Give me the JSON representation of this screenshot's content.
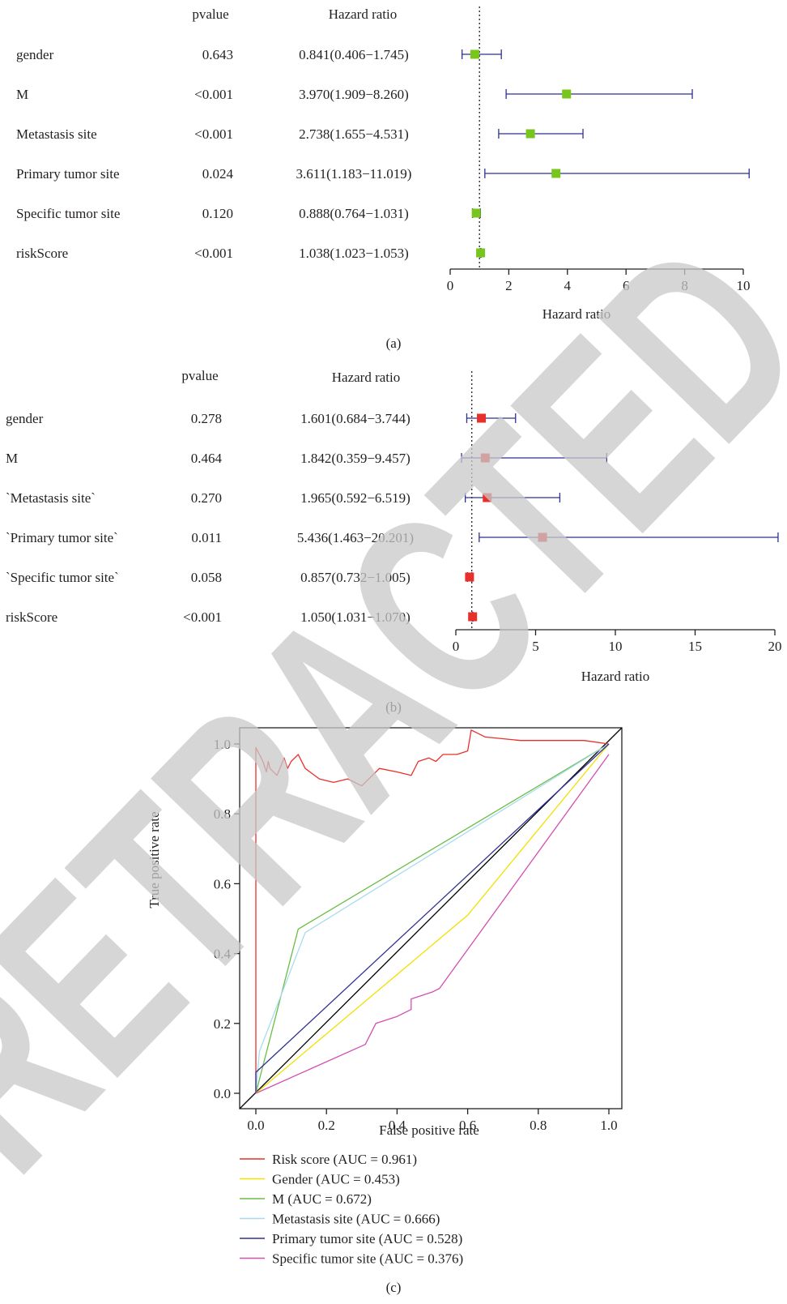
{
  "chart_data": [
    {
      "type": "forest",
      "panel_label": "(a)",
      "header": {
        "pvalue": "pvalue",
        "hr": "Hazard ratio"
      },
      "xlabel": "Hazard ratio",
      "xlim": [
        0,
        10
      ],
      "xticks": [
        0,
        2,
        4,
        6,
        8,
        10
      ],
      "ref_line": 1,
      "colors": {
        "box": "#78c51c",
        "ci": "#2e3192"
      },
      "rows": [
        {
          "label": "gender",
          "pvalue": "0.643",
          "hr_text": "0.841(0.406−1.745)",
          "hr": 0.841,
          "lo": 0.406,
          "hi": 1.745
        },
        {
          "label": "M",
          "pvalue": "<0.001",
          "hr_text": "3.970(1.909−8.260)",
          "hr": 3.97,
          "lo": 1.909,
          "hi": 8.26
        },
        {
          "label": "Metastasis site",
          "pvalue": "<0.001",
          "hr_text": "2.738(1.655−4.531)",
          "hr": 2.738,
          "lo": 1.655,
          "hi": 4.531
        },
        {
          "label": "Primary tumor site",
          "pvalue": "0.024",
          "hr_text": "3.611(1.183−11.019)",
          "hr": 3.611,
          "lo": 1.183,
          "hi": 11.019
        },
        {
          "label": "Specific tumor site",
          "pvalue": "0.120",
          "hr_text": "0.888(0.764−1.031)",
          "hr": 0.888,
          "lo": 0.764,
          "hi": 1.031
        },
        {
          "label": "riskScore",
          "pvalue": "<0.001",
          "hr_text": "1.038(1.023−1.053)",
          "hr": 1.038,
          "lo": 1.023,
          "hi": 1.053
        }
      ]
    },
    {
      "type": "forest",
      "panel_label": "(b)",
      "header": {
        "pvalue": "pvalue",
        "hr": "Hazard ratio"
      },
      "xlabel": "Hazard ratio",
      "xlim": [
        0,
        20
      ],
      "xticks": [
        0,
        5,
        10,
        15,
        20
      ],
      "ref_line": 1,
      "colors": {
        "box": "#e8302a",
        "ci": "#2e3192"
      },
      "rows": [
        {
          "label": "gender",
          "pvalue": "0.278",
          "hr_text": "1.601(0.684−3.744)",
          "hr": 1.601,
          "lo": 0.684,
          "hi": 3.744
        },
        {
          "label": "M",
          "pvalue": "0.464",
          "hr_text": "1.842(0.359−9.457)",
          "hr": 1.842,
          "lo": 0.359,
          "hi": 9.457
        },
        {
          "label": "`Metastasis site`",
          "pvalue": "0.270",
          "hr_text": "1.965(0.592−6.519)",
          "hr": 1.965,
          "lo": 0.592,
          "hi": 6.519
        },
        {
          "label": "`Primary tumor site`",
          "pvalue": "0.011",
          "hr_text": "5.436(1.463−20.201)",
          "hr": 5.436,
          "lo": 1.463,
          "hi": 20.201
        },
        {
          "label": "`Specific tumor site`",
          "pvalue": "0.058",
          "hr_text": "0.857(0.732−1.005)",
          "hr": 0.857,
          "lo": 0.732,
          "hi": 1.005
        },
        {
          "label": "riskScore",
          "pvalue": "<0.001",
          "hr_text": "1.050(1.031−1.070)",
          "hr": 1.05,
          "lo": 1.031,
          "hi": 1.07
        }
      ]
    },
    {
      "type": "line",
      "subtype": "roc",
      "panel_label": "(c)",
      "xlabel": "False positive rate",
      "ylabel": "True positive rate",
      "xlim": [
        0,
        1
      ],
      "ylim": [
        0,
        1
      ],
      "xticks": [
        "0.0",
        "0.2",
        "0.4",
        "0.6",
        "0.8",
        "1.0"
      ],
      "yticks": [
        "0.0",
        "0.2",
        "0.4",
        "0.6",
        "0.8",
        "1.0"
      ],
      "legend_position": "bottom",
      "diagonal": true,
      "series": [
        {
          "name": "Risk score (AUC = 0.961)",
          "color": "#e8302a",
          "points": [
            [
              0,
              0
            ],
            [
              0,
              0.9
            ],
            [
              0,
              0.99
            ],
            [
              0.02,
              0.95
            ],
            [
              0.03,
              0.92
            ],
            [
              0.035,
              0.95
            ],
            [
              0.04,
              0.93
            ],
            [
              0.06,
              0.91
            ],
            [
              0.08,
              0.96
            ],
            [
              0.09,
              0.93
            ],
            [
              0.1,
              0.95
            ],
            [
              0.12,
              0.97
            ],
            [
              0.14,
              0.93
            ],
            [
              0.18,
              0.9
            ],
            [
              0.22,
              0.89
            ],
            [
              0.26,
              0.9
            ],
            [
              0.3,
              0.88
            ],
            [
              0.32,
              0.9
            ],
            [
              0.35,
              0.93
            ],
            [
              0.4,
              0.92
            ],
            [
              0.44,
              0.91
            ],
            [
              0.46,
              0.95
            ],
            [
              0.49,
              0.96
            ],
            [
              0.51,
              0.95
            ],
            [
              0.53,
              0.97
            ],
            [
              0.57,
              0.97
            ],
            [
              0.6,
              0.98
            ],
            [
              0.61,
              1.04
            ],
            [
              0.65,
              1.02
            ],
            [
              0.75,
              1.01
            ],
            [
              0.85,
              1.01
            ],
            [
              0.93,
              1.01
            ],
            [
              1,
              1
            ]
          ]
        },
        {
          "name": "Gender (AUC = 0.453)",
          "color": "#f2e000",
          "points": [
            [
              0,
              0
            ],
            [
              0.6,
              0.51
            ],
            [
              1,
              1
            ]
          ]
        },
        {
          "name": "M (AUC = 0.672)",
          "color": "#6abd45",
          "points": [
            [
              0,
              0
            ],
            [
              0.12,
              0.47
            ],
            [
              1,
              1
            ]
          ]
        },
        {
          "name": "Metastasis site (AUC = 0.666)",
          "color": "#a6dcec",
          "points": [
            [
              0,
              0
            ],
            [
              0.01,
              0.12
            ],
            [
              0.14,
              0.46
            ],
            [
              1,
              1
            ]
          ]
        },
        {
          "name": "Primary tumor site (AUC = 0.528)",
          "color": "#2e3192",
          "points": [
            [
              0,
              0
            ],
            [
              0,
              0.06
            ],
            [
              1,
              1
            ]
          ]
        },
        {
          "name": "Specific tumor site (AUC = 0.376)",
          "color": "#d34fb0",
          "points": [
            [
              0,
              0
            ],
            [
              0.31,
              0.14
            ],
            [
              0.34,
              0.2
            ],
            [
              0.4,
              0.22
            ],
            [
              0.44,
              0.24
            ],
            [
              0.44,
              0.27
            ],
            [
              0.5,
              0.29
            ],
            [
              0.52,
              0.3
            ],
            [
              1,
              0.97
            ]
          ]
        }
      ]
    }
  ],
  "watermark": "RETRACTED"
}
